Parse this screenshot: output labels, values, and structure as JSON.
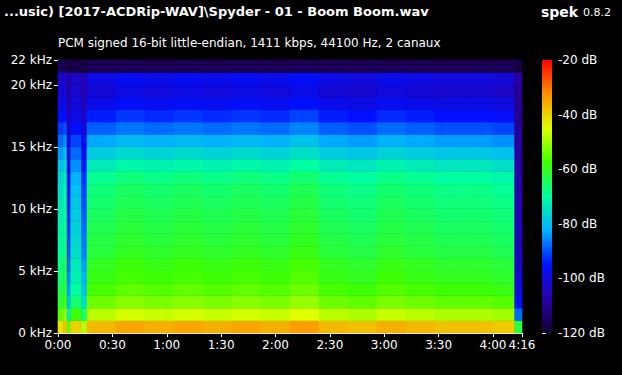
{
  "chart_data": {
    "type": "heatmap",
    "title": "...usic) [2017-ACDRip-WAV]\\Spyder - 01 - Boom Boom.wav",
    "subtitle": "PCM signed 16-bit little-endian, 1411 kbps, 44100 Hz, 2 canaux",
    "annotations": [
      "spek",
      "0.8.2"
    ],
    "xlim": [
      0,
      256
    ],
    "xticks": [
      {
        "value": 0,
        "label": "0:00"
      },
      {
        "value": 30,
        "label": "0:30"
      },
      {
        "value": 60,
        "label": "1:00"
      },
      {
        "value": 90,
        "label": "1:30"
      },
      {
        "value": 120,
        "label": "2:00"
      },
      {
        "value": 150,
        "label": "2:30"
      },
      {
        "value": 180,
        "label": "3:00"
      },
      {
        "value": 210,
        "label": "3:30"
      },
      {
        "value": 240,
        "label": "4:00"
      },
      {
        "value": 256,
        "label": "4:16"
      }
    ],
    "ylim": [
      0,
      22
    ],
    "yticks": [
      {
        "value": 0,
        "label": "0 kHz"
      },
      {
        "value": 5,
        "label": "5 kHz"
      },
      {
        "value": 10,
        "label": "10 kHz"
      },
      {
        "value": 15,
        "label": "15 kHz"
      },
      {
        "value": 20,
        "label": "20 kHz"
      },
      {
        "value": 22,
        "label": "22 kHz"
      }
    ],
    "x_bins": [
      0,
      3,
      5,
      7,
      13,
      16,
      32,
      48,
      64,
      80,
      96,
      112,
      128,
      144,
      160,
      176,
      192,
      208,
      224,
      240,
      252,
      256
    ],
    "y_bins": [
      0,
      1,
      2,
      3,
      4,
      5,
      6,
      7,
      8,
      9,
      10,
      11,
      12,
      13,
      14,
      15,
      16,
      17,
      18,
      19,
      20,
      21,
      22
    ],
    "cells": [
      [
        -42,
        -38,
        -55,
        -40,
        -48,
        -37,
        -35,
        -36,
        -35,
        -36,
        -35,
        -36,
        -34,
        -37,
        -38,
        -36,
        -37,
        -38,
        -38,
        -39,
        -62
      ],
      [
        -55,
        -50,
        -72,
        -58,
        -66,
        -48,
        -46,
        -47,
        -46,
        -47,
        -46,
        -47,
        -45,
        -48,
        -49,
        -47,
        -48,
        -49,
        -49,
        -50,
        -88
      ],
      [
        -62,
        -57,
        -80,
        -66,
        -75,
        -54,
        -52,
        -53,
        -52,
        -53,
        -52,
        -53,
        -51,
        -54,
        -55,
        -53,
        -54,
        -55,
        -55,
        -56,
        -96
      ],
      [
        -65,
        -60,
        -84,
        -70,
        -80,
        -57,
        -55,
        -56,
        -55,
        -56,
        -55,
        -56,
        -54,
        -57,
        -58,
        -56,
        -57,
        -58,
        -58,
        -59,
        -100
      ],
      [
        -67,
        -62,
        -86,
        -72,
        -82,
        -59,
        -57,
        -58,
        -57,
        -58,
        -57,
        -58,
        -56,
        -59,
        -60,
        -58,
        -59,
        -60,
        -60,
        -61,
        -102
      ],
      [
        -68,
        -63,
        -88,
        -73,
        -84,
        -60,
        -58,
        -59,
        -58,
        -59,
        -58,
        -59,
        -57,
        -60,
        -61,
        -59,
        -60,
        -61,
        -61,
        -62,
        -103
      ],
      [
        -70,
        -65,
        -90,
        -75,
        -86,
        -62,
        -60,
        -61,
        -60,
        -61,
        -60,
        -61,
        -59,
        -62,
        -63,
        -61,
        -62,
        -63,
        -63,
        -64,
        -104
      ],
      [
        -71,
        -66,
        -91,
        -76,
        -87,
        -63,
        -61,
        -62,
        -61,
        -62,
        -61,
        -62,
        -60,
        -63,
        -64,
        -62,
        -63,
        -64,
        -64,
        -65,
        -105
      ],
      [
        -72,
        -67,
        -92,
        -77,
        -88,
        -64,
        -62,
        -63,
        -62,
        -63,
        -62,
        -63,
        -61,
        -64,
        -65,
        -63,
        -64,
        -65,
        -65,
        -66,
        -105
      ],
      [
        -73,
        -68,
        -93,
        -78,
        -89,
        -65,
        -63,
        -64,
        -63,
        -64,
        -63,
        -64,
        -62,
        -65,
        -66,
        -64,
        -65,
        -66,
        -66,
        -67,
        -106
      ],
      [
        -74,
        -69,
        -94,
        -79,
        -90,
        -66,
        -64,
        -65,
        -64,
        -65,
        -64,
        -65,
        -63,
        -66,
        -67,
        -65,
        -66,
        -67,
        -67,
        -68,
        -106
      ],
      [
        -75,
        -70,
        -95,
        -80,
        -91,
        -67,
        -65,
        -66,
        -65,
        -66,
        -65,
        -66,
        -64,
        -67,
        -68,
        -66,
        -67,
        -68,
        -68,
        -69,
        -107
      ],
      [
        -77,
        -72,
        -96,
        -82,
        -92,
        -69,
        -67,
        -68,
        -67,
        -68,
        -67,
        -68,
        -66,
        -69,
        -70,
        -68,
        -69,
        -70,
        -70,
        -71,
        -107
      ],
      [
        -80,
        -76,
        -98,
        -85,
        -94,
        -73,
        -71,
        -72,
        -71,
        -72,
        -71,
        -72,
        -70,
        -73,
        -74,
        -72,
        -73,
        -74,
        -74,
        -75,
        -108
      ],
      [
        -84,
        -80,
        -100,
        -88,
        -96,
        -78,
        -76,
        -77,
        -76,
        -77,
        -76,
        -77,
        -75,
        -78,
        -79,
        -77,
        -78,
        -79,
        -79,
        -80,
        -108
      ],
      [
        -88,
        -85,
        -102,
        -91,
        -98,
        -83,
        -81,
        -82,
        -81,
        -82,
        -81,
        -82,
        -80,
        -83,
        -84,
        -82,
        -83,
        -84,
        -84,
        -85,
        -109
      ],
      [
        -92,
        -90,
        -104,
        -95,
        -101,
        -89,
        -87,
        -88,
        -87,
        -88,
        -87,
        -88,
        -86,
        -89,
        -90,
        -88,
        -89,
        -90,
        -90,
        -91,
        -109
      ],
      [
        -96,
        -95,
        -106,
        -98,
        -103,
        -94,
        -92,
        -93,
        -92,
        -93,
        -92,
        -93,
        -91,
        -94,
        -95,
        -93,
        -94,
        -95,
        -95,
        -96,
        -110
      ],
      [
        -99,
        -98,
        -107,
        -100,
        -105,
        -98,
        -96,
        -97,
        -96,
        -97,
        -96,
        -97,
        -95,
        -98,
        -99,
        -97,
        -98,
        -99,
        -99,
        -100,
        -110
      ],
      [
        -101,
        -100,
        -108,
        -102,
        -106,
        -101,
        -99,
        -100,
        -99,
        -100,
        -99,
        -100,
        -98,
        -101,
        -102,
        -100,
        -101,
        -102,
        -102,
        -103,
        -110
      ],
      [
        -103,
        -102,
        -108,
        -103,
        -106,
        -99,
        -97,
        -98,
        -97,
        -98,
        -97,
        -98,
        -96,
        -99,
        -100,
        -98,
        -99,
        -100,
        -100,
        -101,
        -108
      ],
      [
        -116,
        -116,
        -118,
        -117,
        -118,
        -116,
        -116,
        -116,
        -116,
        -116,
        -116,
        -116,
        -116,
        -116,
        -116,
        -116,
        -116,
        -116,
        -116,
        -116,
        -118
      ]
    ],
    "colorbar": {
      "range": [
        -120,
        -20
      ],
      "ticks": [
        {
          "value": -20,
          "label": "-20 dB"
        },
        {
          "value": -40,
          "label": "-40 dB"
        },
        {
          "value": -60,
          "label": "-60 dB"
        },
        {
          "value": -80,
          "label": "-80 dB"
        },
        {
          "value": -100,
          "label": "-100 dB"
        },
        {
          "value": -120,
          "label": "-120 dB"
        }
      ],
      "colors": [
        "#12002e",
        "#2a00a8",
        "#0010ff",
        "#00b0ff",
        "#00ffa0",
        "#40ff00",
        "#e0ff00",
        "#ff9000",
        "#ff0000"
      ]
    }
  }
}
